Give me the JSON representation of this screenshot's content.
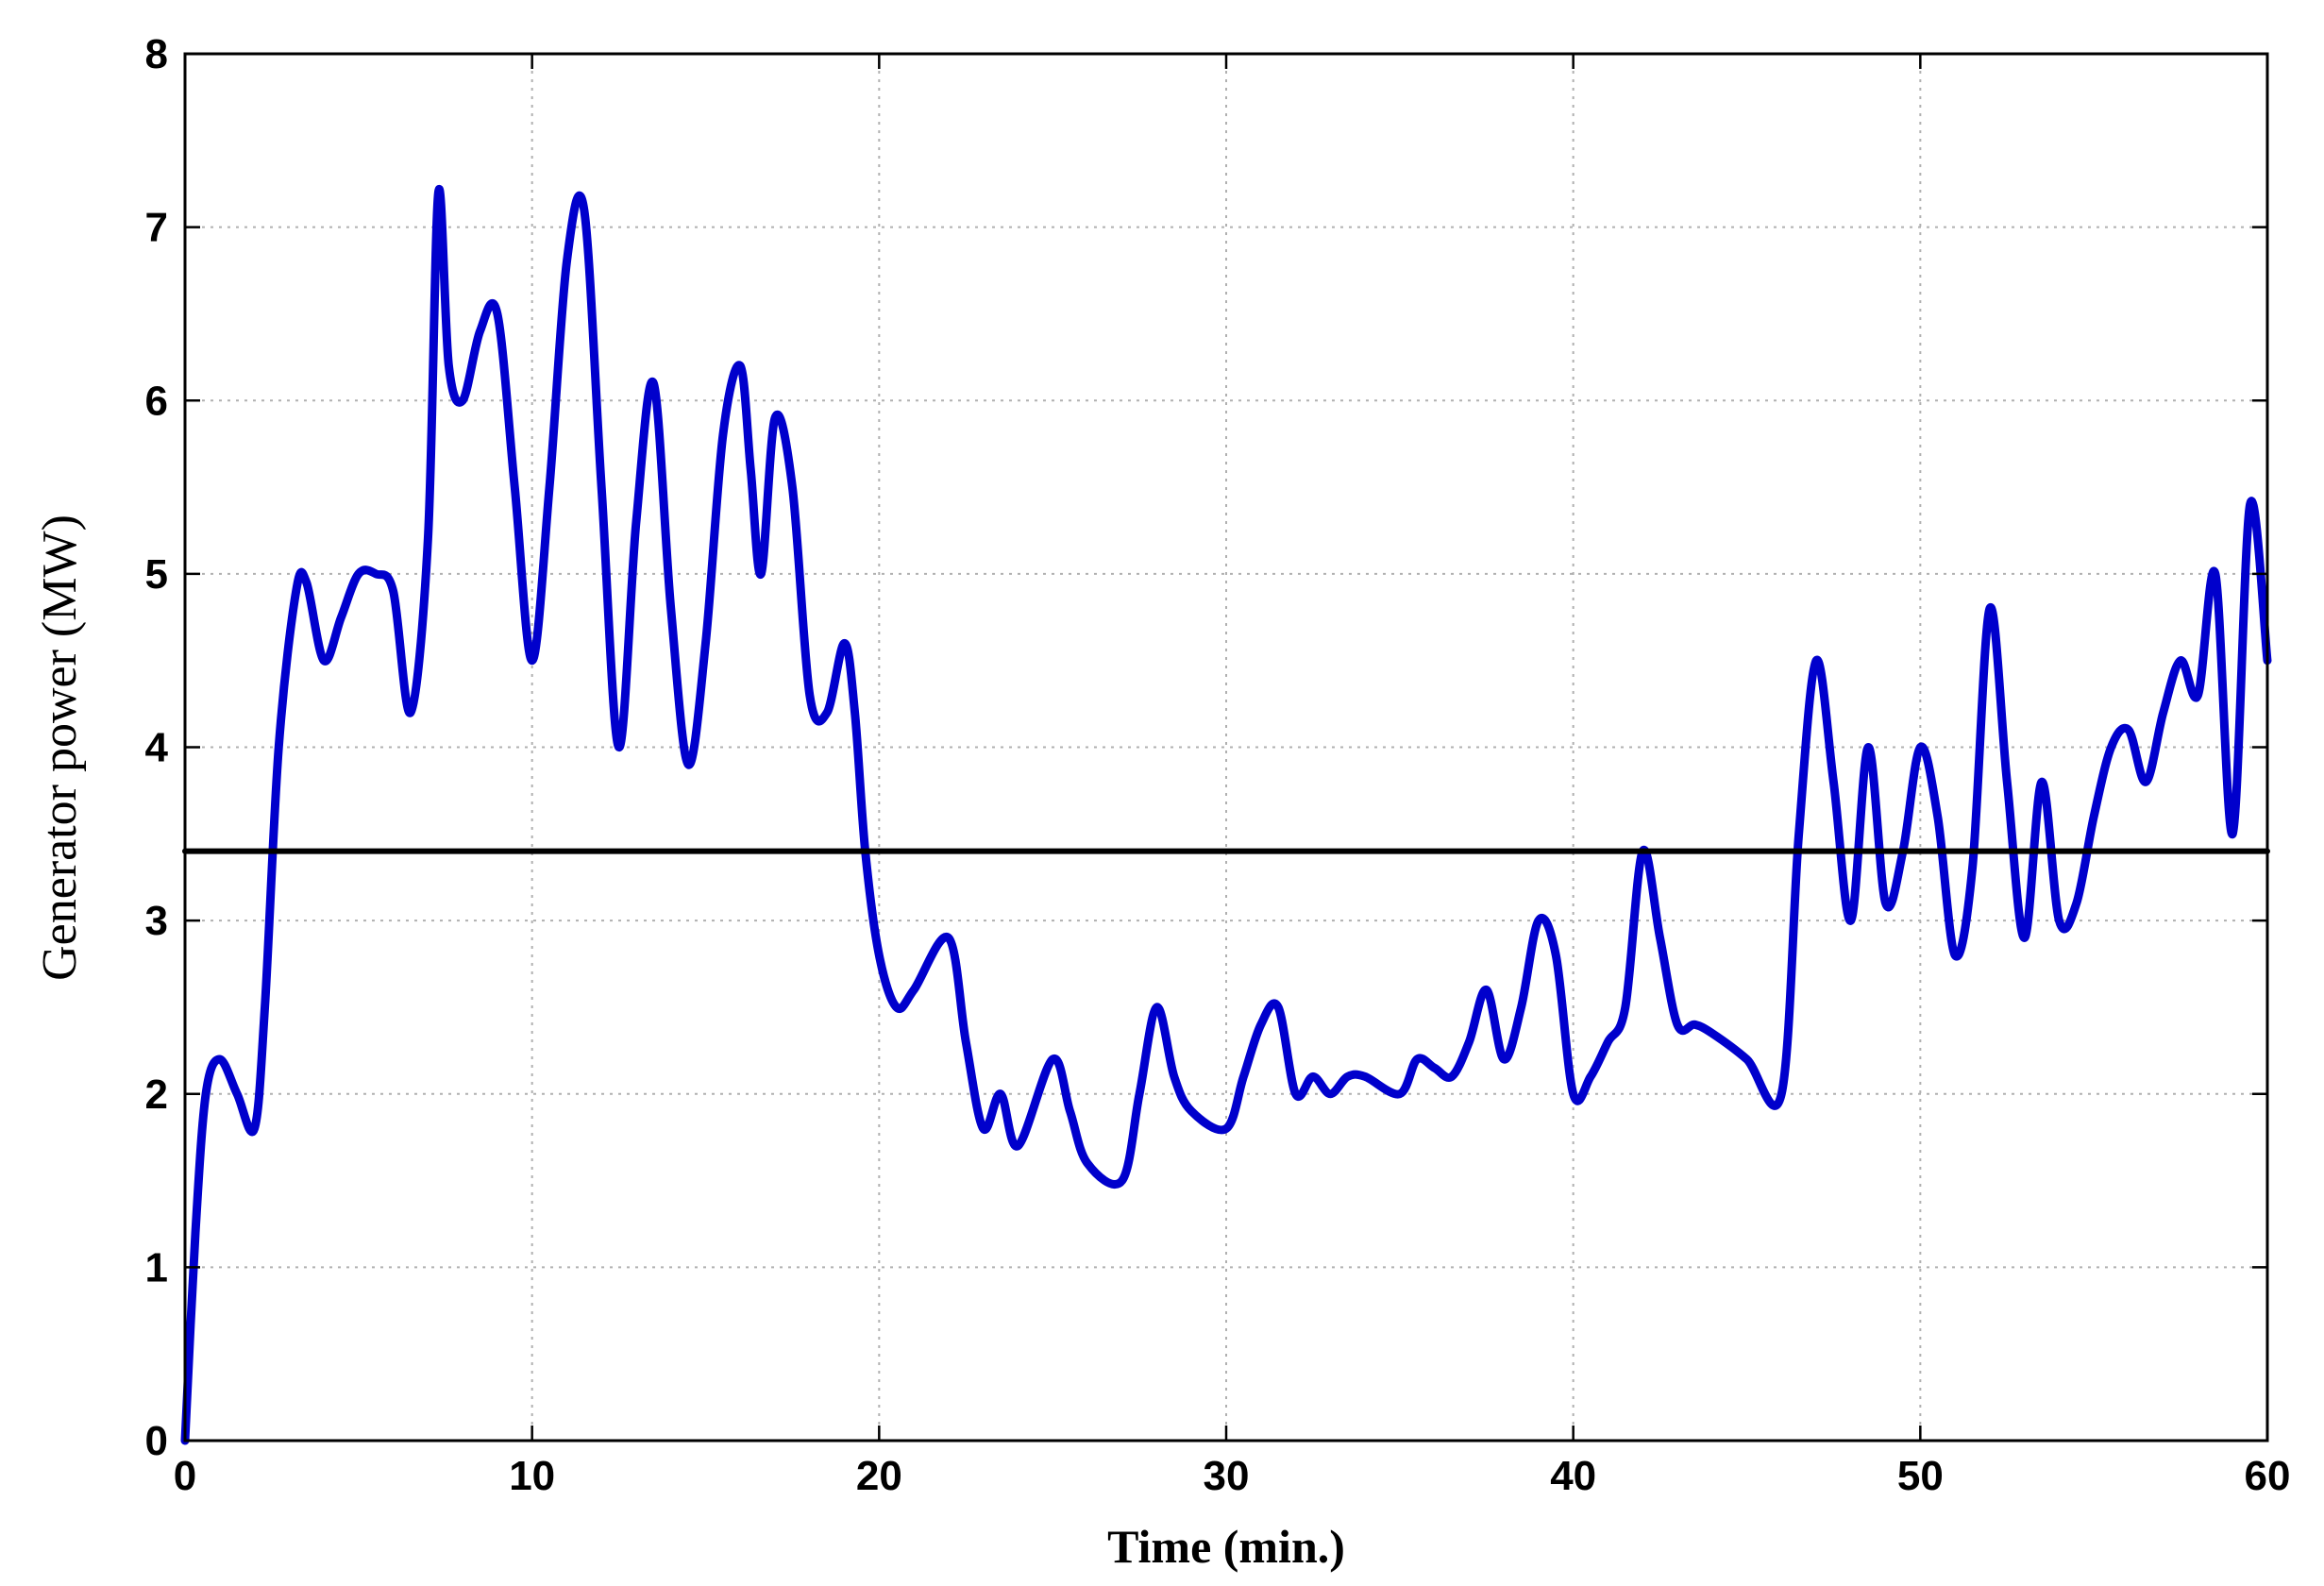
{
  "chart_data": {
    "type": "line",
    "title": "",
    "xlabel": "Time (min.)",
    "ylabel": "Generator power (MW)",
    "xlim": [
      0,
      60
    ],
    "ylim": [
      0,
      8
    ],
    "xticks": [
      "0",
      "10",
      "20",
      "30",
      "40",
      "50",
      "60"
    ],
    "yticks": [
      "0",
      "1",
      "2",
      "3",
      "4",
      "5",
      "6",
      "7",
      "8"
    ],
    "grid": true,
    "series": [
      {
        "color": "#0000cc",
        "x": [
          0,
          0.3,
          0.6,
          1.0,
          1.5,
          2.0,
          2.3,
          2.7,
          3.2,
          3.5,
          4.0,
          4.5,
          5.0,
          5.5,
          6.0,
          6.5,
          7.0,
          7.3,
          7.6,
          8.0,
          8.5,
          9.0,
          9.5,
          10.0,
          10.5,
          11.0,
          11.5,
          12.0,
          12.5,
          13.0,
          13.5,
          14.0,
          14.5,
          15.0,
          15.5,
          16.0,
          16.3,
          16.6,
          17.0,
          17.5,
          18.0,
          18.5,
          19.0,
          19.3,
          19.6,
          20.0,
          20.5,
          21.0,
          22.0,
          22.5,
          23.0,
          23.5,
          24.0,
          25.0,
          25.5,
          26.0,
          27.0,
          27.5,
          28.0,
          28.5,
          29.0,
          30.0,
          30.5,
          31.0,
          31.5,
          32.0,
          32.5,
          33.0,
          33.5,
          34.0,
          35.0,
          35.5,
          36.0,
          36.5,
          37.0,
          37.5,
          38.0,
          38.5,
          39.0,
          39.5,
          40.0,
          40.5,
          41.0,
          41.5,
          42.0,
          42.5,
          43.0,
          43.5,
          44.0,
          45.0,
          46.0,
          46.5,
          47.0,
          47.5,
          48.0,
          48.5,
          49.0,
          49.5,
          50.0,
          50.5,
          51.0,
          51.5,
          52.0,
          52.5,
          53.0,
          53.5,
          54.0,
          54.5,
          55.0,
          55.5,
          56.0,
          56.5,
          57.0,
          57.5,
          58.0,
          58.5,
          59.0,
          59.5,
          60.0
        ],
        "y": [
          0,
          1.2,
          2.0,
          2.2,
          2.0,
          1.8,
          2.5,
          4.0,
          4.9,
          4.95,
          4.5,
          4.75,
          5.0,
          5.0,
          4.9,
          4.2,
          5.2,
          7.2,
          6.2,
          6.0,
          6.4,
          6.5,
          5.5,
          4.5,
          5.5,
          6.8,
          7.1,
          5.5,
          4.0,
          5.3,
          6.1,
          4.8,
          3.9,
          4.6,
          5.8,
          6.2,
          5.6,
          5.0,
          5.9,
          5.5,
          4.3,
          4.2,
          4.6,
          4.2,
          3.4,
          2.8,
          2.5,
          2.6,
          2.9,
          2.3,
          1.8,
          2.0,
          1.7,
          2.2,
          1.9,
          1.6,
          1.5,
          2.0,
          2.5,
          2.1,
          1.9,
          1.8,
          2.1,
          2.4,
          2.5,
          2.0,
          2.1,
          2.0,
          2.1,
          2.1,
          2.0,
          2.2,
          2.15,
          2.1,
          2.3,
          2.6,
          2.2,
          2.5,
          3.0,
          2.8,
          2.0,
          2.1,
          2.3,
          2.5,
          3.4,
          2.9,
          2.4,
          2.4,
          2.35,
          2.2,
          2.0,
          3.5,
          4.5,
          3.8,
          3.0,
          4.0,
          3.1,
          3.4,
          4.0,
          3.6,
          2.8,
          3.3,
          4.8,
          3.8,
          2.9,
          3.8,
          3.0,
          3.1,
          3.6,
          4.0,
          4.1,
          3.8,
          4.2,
          4.5,
          4.3,
          5.0,
          3.5,
          5.4,
          4.5
        ]
      },
      {
        "color": "#000000",
        "x": [
          0,
          60
        ],
        "y": [
          3.4,
          3.4
        ]
      }
    ]
  }
}
